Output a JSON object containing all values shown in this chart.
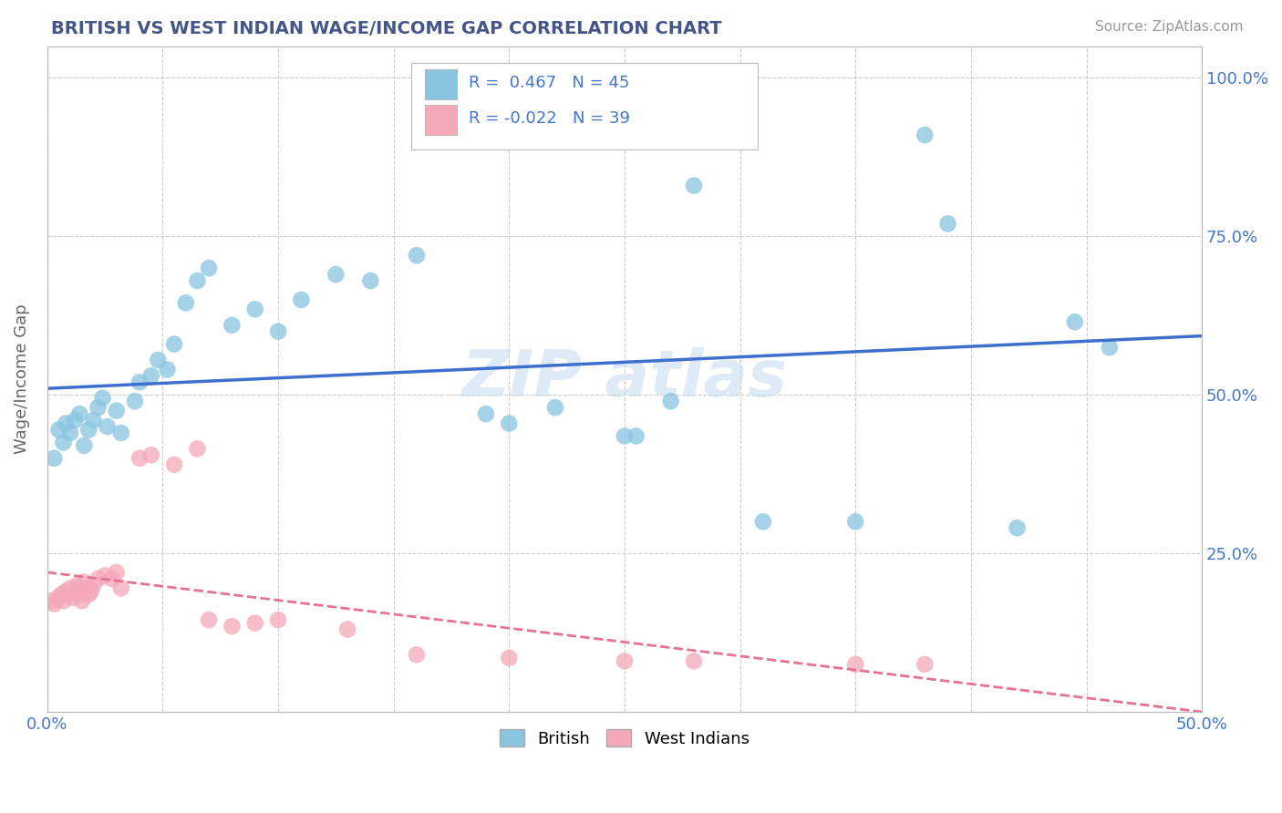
{
  "title": "BRITISH VS WEST INDIAN WAGE/INCOME GAP CORRELATION CHART",
  "source": "Source: ZipAtlas.com",
  "ylabel": "Wage/Income Gap",
  "xlim": [
    0.0,
    0.5
  ],
  "ylim": [
    0.0,
    1.05
  ],
  "watermark": "ZIPatlas",
  "blue_color": "#89c4e1",
  "pink_color": "#f4a8b8",
  "trendline_blue": "#3d6fcc",
  "trendline_pink": "#e87090",
  "background_color": "#ffffff",
  "grid_color": "#cccccc",
  "british_x": [
    0.003,
    0.005,
    0.007,
    0.008,
    0.01,
    0.012,
    0.014,
    0.016,
    0.018,
    0.02,
    0.022,
    0.024,
    0.026,
    0.028,
    0.03,
    0.032,
    0.035,
    0.038,
    0.04,
    0.045,
    0.05,
    0.055,
    0.06,
    0.065,
    0.07,
    0.08,
    0.09,
    0.1,
    0.11,
    0.12,
    0.13,
    0.15,
    0.17,
    0.2,
    0.23,
    0.25,
    0.27,
    0.31,
    0.35,
    0.39,
    0.42,
    0.44,
    0.46,
    0.27,
    0.38
  ],
  "british_y": [
    0.395,
    0.43,
    0.42,
    0.45,
    0.44,
    0.455,
    0.47,
    0.42,
    0.445,
    0.46,
    0.48,
    0.49,
    0.45,
    0.465,
    0.475,
    0.44,
    0.48,
    0.5,
    0.49,
    0.52,
    0.53,
    0.54,
    0.555,
    0.57,
    0.58,
    0.6,
    0.62,
    0.59,
    0.64,
    0.63,
    0.65,
    0.68,
    0.7,
    0.56,
    0.43,
    0.43,
    0.49,
    0.29,
    0.3,
    0.9,
    0.29,
    0.61,
    0.58,
    0.78,
    0.73
  ],
  "westindian_x": [
    0.002,
    0.004,
    0.006,
    0.008,
    0.01,
    0.012,
    0.013,
    0.015,
    0.016,
    0.018,
    0.02,
    0.022,
    0.024,
    0.026,
    0.028,
    0.03,
    0.032,
    0.035,
    0.038,
    0.04,
    0.045,
    0.05,
    0.055,
    0.06,
    0.065,
    0.07,
    0.075,
    0.08,
    0.09,
    0.1,
    0.11,
    0.13,
    0.16,
    0.19,
    0.23,
    0.26,
    0.28,
    0.36,
    0.38
  ],
  "westindian_y": [
    0.185,
    0.175,
    0.195,
    0.2,
    0.19,
    0.205,
    0.215,
    0.195,
    0.2,
    0.215,
    0.195,
    0.185,
    0.205,
    0.2,
    0.21,
    0.195,
    0.2,
    0.185,
    0.2,
    0.4,
    0.405,
    0.415,
    0.39,
    0.4,
    0.395,
    0.145,
    0.135,
    0.145,
    0.135,
    0.2,
    0.15,
    0.145,
    0.095,
    0.085,
    0.08,
    0.075,
    0.08,
    0.075,
    0.075
  ]
}
